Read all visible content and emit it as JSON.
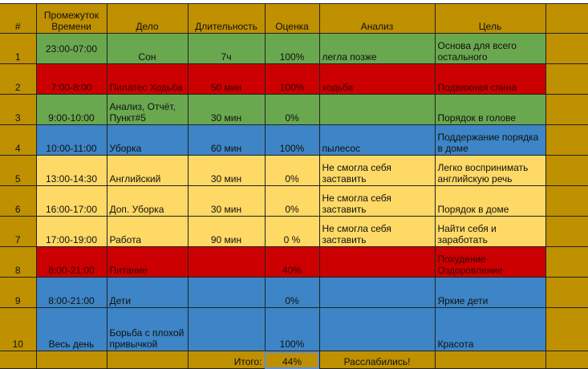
{
  "headers": [
    "#",
    "Промежуток Времени",
    "Дело",
    "Длительность",
    "Оценка",
    "Анализ",
    "Цель"
  ],
  "rows": [
    {
      "n": "1",
      "time": "23:00-07:00",
      "task": "Сон",
      "duration": "7ч",
      "score": "100%",
      "analysis": "легла позже",
      "goal": "Основа для всего остального",
      "color": "green"
    },
    {
      "n": "2",
      "time": "7:00-8:00",
      "task": "Пилатес Ходьба",
      "duration": "50 мин",
      "score": "100%",
      "analysis": "ходьба",
      "goal": "Подвижная спина",
      "color": "red"
    },
    {
      "n": "3",
      "time": "9:00-10:00",
      "task": "Анализ, Отчёт, Пункт#5",
      "duration": "30 мин",
      "score": "0%",
      "analysis": "",
      "goal": "Порядок в голове",
      "color": "green"
    },
    {
      "n": "4",
      "time": "10:00-11:00",
      "task": "Уборка",
      "duration": "60 мин",
      "score": "100%",
      "analysis": "пылесос",
      "goal": "Поддержание порядка в доме",
      "color": "blue"
    },
    {
      "n": "5",
      "time": "13:00-14:30",
      "task": "Английский",
      "duration": "30 мин",
      "score": "0%",
      "analysis": "Не смогла себя заставить",
      "goal": "Легко воспринимать английскую речь",
      "color": "yellow"
    },
    {
      "n": "6",
      "time": "16:00-17:00",
      "task": "Доп. Уборка",
      "duration": "30 мин",
      "score": "0%",
      "analysis": "Не смогла себя заставить",
      "goal": "Порядок в доме",
      "color": "yellow"
    },
    {
      "n": "7",
      "time": "17:00-19:00",
      "task": "Работа",
      "duration": "90 мин",
      "score": "0 %",
      "analysis": "Не смогла себя заставить",
      "goal": "Найти себя и заработать",
      "color": "yellow"
    },
    {
      "n": "8",
      "time": "8:00-21:00",
      "task": "Питание",
      "duration": "",
      "score": "40%",
      "analysis": "",
      "goal": "Похудение Оздоровление",
      "color": "red"
    },
    {
      "n": "9",
      "time": "8:00-21:00",
      "task": "Дети",
      "duration": "",
      "score": "0%",
      "analysis": "",
      "goal": "Яркие дети",
      "color": "blue"
    },
    {
      "n": "10",
      "time": "Весь день",
      "task": "Борьба с плохой привычкой",
      "duration": "",
      "score": "100%",
      "analysis": "",
      "goal": "Красота",
      "color": "blue"
    }
  ],
  "total": {
    "label": "Итого:",
    "score": "44%",
    "comment": "Расслабились!"
  }
}
